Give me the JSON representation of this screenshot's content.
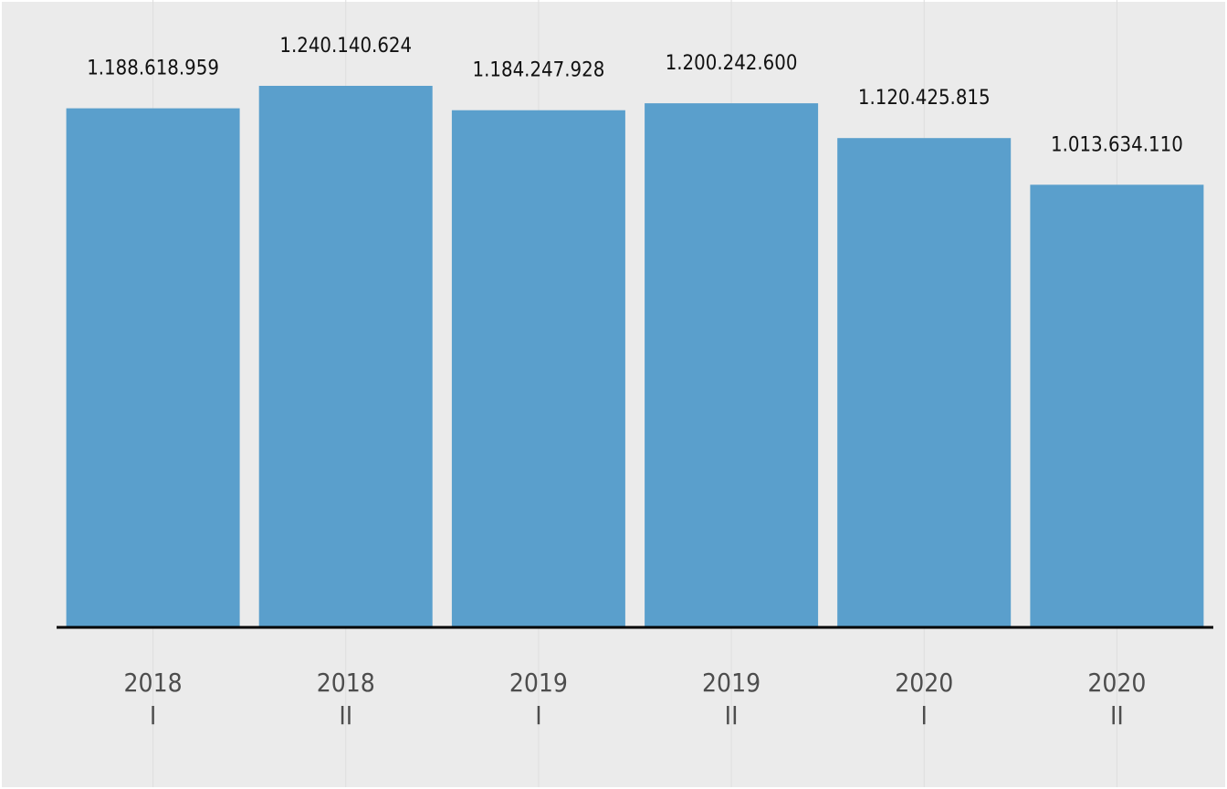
{
  "chart_data": {
    "type": "bar",
    "categories": [
      {
        "year": "2018",
        "half": "I"
      },
      {
        "year": "2018",
        "half": "II"
      },
      {
        "year": "2019",
        "half": "I"
      },
      {
        "year": "2019",
        "half": "II"
      },
      {
        "year": "2020",
        "half": "I"
      },
      {
        "year": "2020",
        "half": "II"
      }
    ],
    "values": [
      1188618959,
      1240140624,
      1184247928,
      1200242600,
      1120425815,
      1013634110
    ],
    "value_labels": [
      "1.188.618.959",
      "1.240.140.624",
      "1.184.247.928",
      "1.200.242.600",
      "1.120.425.815",
      "1.013.634.110"
    ],
    "ylim": [
      0,
      1240140624
    ],
    "grid": false,
    "colors": {
      "bar": "#5a9fcc",
      "background": "#ebebeb",
      "axis": "#000000",
      "gridline": "#dedede"
    }
  }
}
